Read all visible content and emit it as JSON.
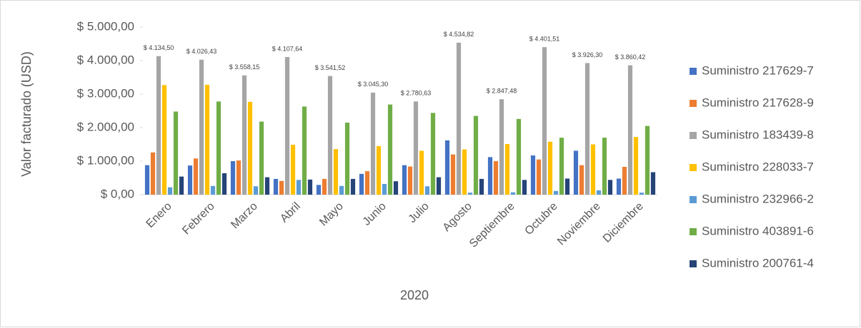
{
  "chart_data": {
    "type": "bar",
    "x_title": "2020",
    "y_title": "Valor facturado (USD)",
    "categories": [
      "Enero",
      "Febrero",
      "Marzo",
      "Abril",
      "Mayo",
      "Junio",
      "Julio",
      "Agosto",
      "Septiembre",
      "Octubre",
      "Noviembre",
      "Diciembre"
    ],
    "series": [
      {
        "name": "Suministro 217629-7",
        "color": "#4472c4",
        "values": [
          880,
          870,
          1000,
          470,
          290,
          620,
          880,
          1620,
          1120,
          1170,
          1310,
          480
        ]
      },
      {
        "name": "Suministro 217628-9",
        "color": "#ed7d31",
        "values": [
          1260,
          1080,
          1020,
          410,
          470,
          700,
          840,
          1200,
          1000,
          1050,
          880,
          830
        ]
      },
      {
        "name": "Suministro 183439-8",
        "color": "#a5a5a5",
        "values": [
          4134.5,
          4026.43,
          3558.15,
          4107.64,
          3541.52,
          3045.3,
          2780.63,
          4534.82,
          2847.48,
          4401.51,
          3926.3,
          3860.42
        ],
        "value_labels": [
          "$ 4.134,50",
          "$ 4.026,43",
          "$ 3.558,15",
          "$ 4.107,64",
          "$ 3.541,52",
          "$ 3.045,30",
          "$ 2.780,63",
          "$ 4.534,82",
          "$ 2.847,48",
          "$ 4.401,51",
          "$ 3.926,30",
          "$ 3.860,42"
        ]
      },
      {
        "name": "Suministro 228033-7",
        "color": "#ffc000",
        "values": [
          3270,
          3280,
          2770,
          1490,
          1360,
          1450,
          1310,
          1350,
          1510,
          1580,
          1500,
          1720
        ]
      },
      {
        "name": "Suministro 232966-2",
        "color": "#5b9bd5",
        "values": [
          220,
          260,
          250,
          440,
          260,
          320,
          250,
          60,
          70,
          110,
          130,
          60
        ]
      },
      {
        "name": "Suministro 403891-6",
        "color": "#70ad47",
        "values": [
          2480,
          2780,
          2180,
          2630,
          2150,
          2690,
          2440,
          2350,
          2260,
          1700,
          1700,
          2050
        ]
      },
      {
        "name": "Suministro 200761-4",
        "color": "#264478",
        "values": [
          540,
          640,
          520,
          450,
          470,
          400,
          520,
          470,
          440,
          480,
          440,
          670
        ]
      }
    ],
    "ylim": [
      0,
      5000
    ],
    "yticks": [
      {
        "value": 0,
        "label": "$ 0,00"
      },
      {
        "value": 1000,
        "label": "$ 1.000,00"
      },
      {
        "value": 2000,
        "label": "$ 2.000,00"
      },
      {
        "value": 3000,
        "label": "$ 3.000,00"
      },
      {
        "value": 4000,
        "label": "$ 4.000,00"
      },
      {
        "value": 5000,
        "label": "$ 5.000,00"
      }
    ]
  }
}
